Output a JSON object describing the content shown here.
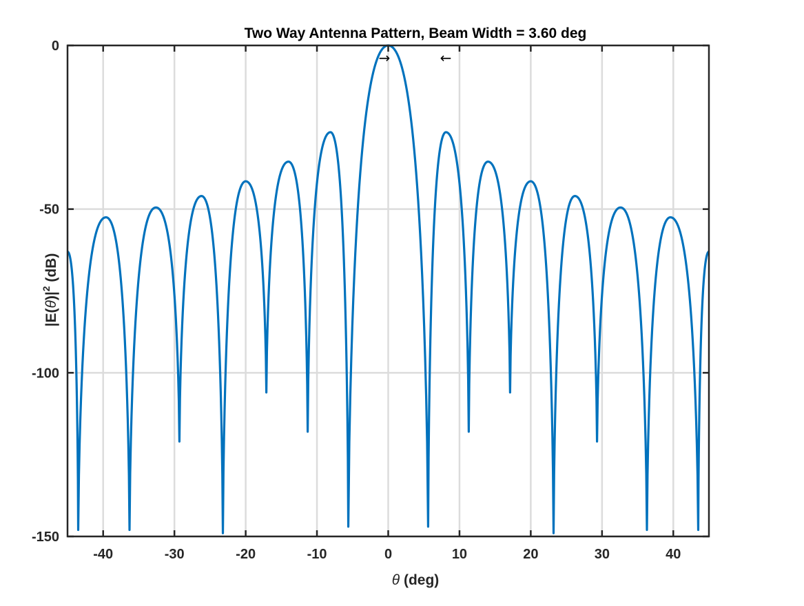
{
  "chart_data": {
    "type": "line",
    "title": "Two Way Antenna Pattern, Beam Width = 3.60 deg",
    "xlabel_symbol": "θ",
    "xlabel_rest": " (deg)",
    "ylabel_prefix": "|E(",
    "ylabel_symbol": "θ",
    "ylabel_mid": ")|",
    "ylabel_sup": "2",
    "ylabel_suffix": " (dB)",
    "xlim": [
      -45,
      45
    ],
    "ylim": [
      -150,
      0
    ],
    "xticks": [
      -40,
      -30,
      -20,
      -10,
      0,
      10,
      20,
      30,
      40
    ],
    "xtick_labels": [
      "-40",
      "-30",
      "-20",
      "-10",
      "0",
      "10",
      "20",
      "30",
      "40"
    ],
    "yticks": [
      0,
      -50,
      -100,
      -150
    ],
    "ytick_labels": [
      "0",
      "-50",
      "-100",
      "-150"
    ],
    "grid": true,
    "line_color": "#0072BD",
    "beam_width_deg": 3.6,
    "beam_arrows": {
      "left": "→",
      "right": "←"
    },
    "series": [
      {
        "nulls": [
          {
            "x": -43.5,
            "y": -148
          },
          {
            "x": -36.3,
            "y": -148
          },
          {
            "x": -29.3,
            "y": -121
          },
          {
            "x": -23.2,
            "y": -149
          },
          {
            "x": -17.1,
            "y": -106
          },
          {
            "x": -11.3,
            "y": -118
          },
          {
            "x": -5.6,
            "y": -147
          },
          {
            "x": 5.6,
            "y": -147
          },
          {
            "x": 11.3,
            "y": -118
          },
          {
            "x": 17.1,
            "y": -106
          },
          {
            "x": 23.2,
            "y": -149
          },
          {
            "x": 29.3,
            "y": -121
          },
          {
            "x": 36.3,
            "y": -148
          },
          {
            "x": 43.5,
            "y": -148
          }
        ],
        "peaks": [
          {
            "x": -39.6,
            "y": -52.5
          },
          {
            "x": -32.6,
            "y": -49.5
          },
          {
            "x": -26.2,
            "y": -46
          },
          {
            "x": -20.0,
            "y": -41.5
          },
          {
            "x": -14.0,
            "y": -35.5
          },
          {
            "x": -8.1,
            "y": -26.5
          },
          {
            "x": 0,
            "y": 0
          },
          {
            "x": 8.1,
            "y": -26.5
          },
          {
            "x": 14.0,
            "y": -35.5
          },
          {
            "x": 20.0,
            "y": -41.5
          },
          {
            "x": 26.2,
            "y": -46
          },
          {
            "x": 32.6,
            "y": -49.5
          },
          {
            "x": 39.6,
            "y": -52.5
          }
        ],
        "edges": [
          {
            "x": -45,
            "y": -63
          },
          {
            "x": 45,
            "y": -63
          }
        ]
      }
    ]
  }
}
